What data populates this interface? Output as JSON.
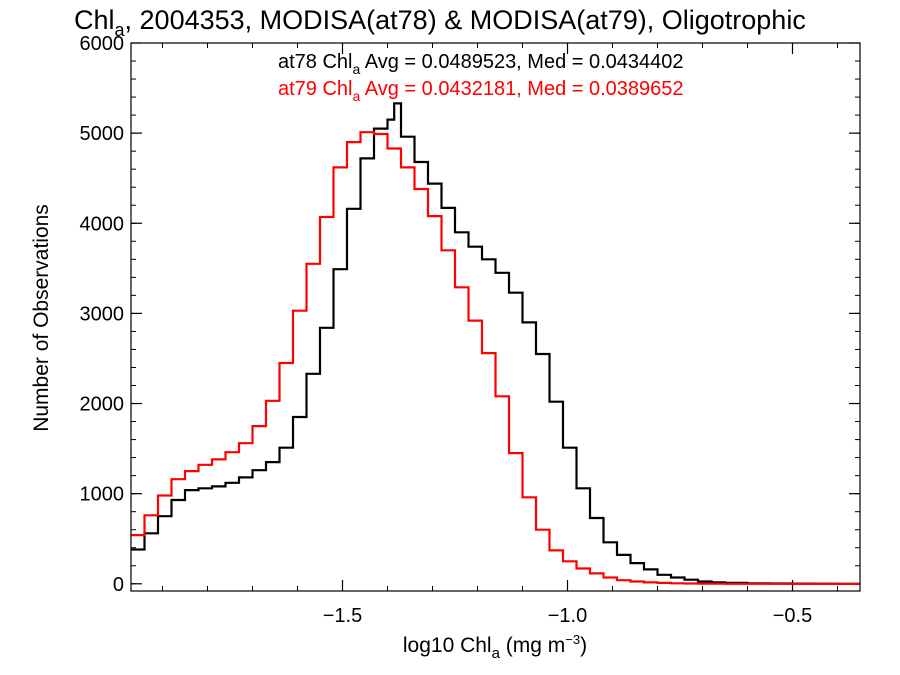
{
  "chart_data": {
    "type": "line",
    "step": true,
    "title": {
      "prefix": "Chl",
      "subscript": "a",
      "rest": ", 2004353, MODISA(at78) & MODISA(at79), Oligotrophic"
    },
    "xlabel": {
      "prefix": "log10 Chl",
      "subscript": "a",
      "middle": " (mg m",
      "superscript": "−3",
      "suffix": ")"
    },
    "ylabel": "Number of Observations",
    "xlim": [
      -1.97,
      -0.35
    ],
    "ylim": [
      -80,
      6000
    ],
    "xticks": [
      -1.5,
      -1.0,
      -0.5
    ],
    "xtick_labels": [
      "−1.5",
      "−1.0",
      "−0.5"
    ],
    "yticks": [
      0,
      1000,
      2000,
      3000,
      4000,
      5000,
      6000
    ],
    "ytick_labels": [
      "0",
      "1000",
      "2000",
      "3000",
      "4000",
      "5000",
      "6000"
    ],
    "x_minor_step": 0.1,
    "y_minor_step": 200,
    "grid": false,
    "legend_position": "top-center",
    "series": [
      {
        "name": "at78",
        "legend": {
          "prefix": "at78 Chl",
          "subscript": "a",
          "rest": " Avg = 0.0489523, Med = 0.0434402"
        },
        "color": "#000000",
        "x": [
          -1.97,
          -1.94,
          -1.91,
          -1.88,
          -1.85,
          -1.82,
          -1.79,
          -1.76,
          -1.73,
          -1.7,
          -1.67,
          -1.64,
          -1.61,
          -1.58,
          -1.55,
          -1.52,
          -1.49,
          -1.46,
          -1.43,
          -1.4,
          -1.385,
          -1.37,
          -1.34,
          -1.31,
          -1.28,
          -1.25,
          -1.22,
          -1.19,
          -1.16,
          -1.13,
          -1.1,
          -1.07,
          -1.04,
          -1.01,
          -0.98,
          -0.95,
          -0.92,
          -0.89,
          -0.86,
          -0.83,
          -0.8,
          -0.77,
          -0.74,
          -0.71,
          -0.68,
          -0.65,
          -0.6,
          -0.55,
          -0.5,
          -0.45,
          -0.4,
          -0.35
        ],
        "y": [
          380,
          560,
          750,
          930,
          1040,
          1060,
          1080,
          1120,
          1180,
          1260,
          1350,
          1510,
          1850,
          2330,
          2840,
          3490,
          4160,
          4720,
          5050,
          5150,
          5330,
          4960,
          4680,
          4440,
          4170,
          3900,
          3740,
          3600,
          3450,
          3230,
          2900,
          2550,
          2020,
          1510,
          1060,
          730,
          460,
          320,
          230,
          160,
          100,
          70,
          45,
          25,
          15,
          10,
          5,
          3,
          2,
          1,
          0,
          0
        ]
      },
      {
        "name": "at79",
        "legend": {
          "prefix": "at79 Chl",
          "subscript": "a",
          "rest": " Avg = 0.0432181, Med = 0.0389652"
        },
        "color": "#ff0000",
        "x": [
          -1.97,
          -1.94,
          -1.91,
          -1.88,
          -1.85,
          -1.82,
          -1.79,
          -1.76,
          -1.73,
          -1.7,
          -1.67,
          -1.64,
          -1.61,
          -1.58,
          -1.55,
          -1.52,
          -1.49,
          -1.46,
          -1.43,
          -1.4,
          -1.37,
          -1.34,
          -1.31,
          -1.28,
          -1.25,
          -1.22,
          -1.19,
          -1.16,
          -1.13,
          -1.1,
          -1.07,
          -1.04,
          -1.01,
          -0.98,
          -0.95,
          -0.92,
          -0.89,
          -0.86,
          -0.83,
          -0.8,
          -0.77,
          -0.74,
          -0.71,
          -0.68,
          -0.65,
          -0.6,
          -0.55,
          -0.5,
          -0.45,
          -0.4,
          -0.35
        ],
        "y": [
          540,
          760,
          980,
          1160,
          1250,
          1320,
          1380,
          1460,
          1560,
          1750,
          2030,
          2450,
          3030,
          3550,
          4070,
          4620,
          4900,
          5010,
          4990,
          4830,
          4620,
          4380,
          4080,
          3700,
          3290,
          2920,
          2560,
          2080,
          1450,
          960,
          600,
          370,
          250,
          170,
          115,
          70,
          40,
          25,
          15,
          10,
          5,
          3,
          2,
          1,
          0,
          0,
          0,
          0,
          0,
          0,
          0
        ]
      }
    ]
  }
}
